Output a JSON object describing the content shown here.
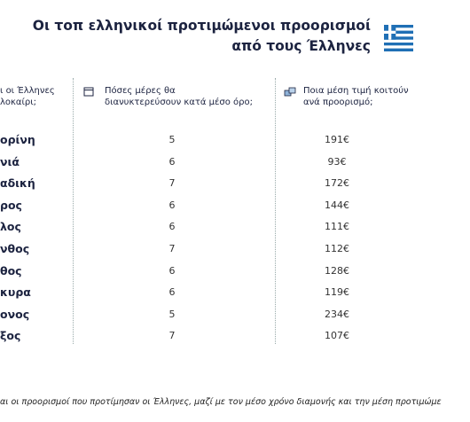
{
  "header": {
    "title_lines": [
      "Οι τοπ ελληνικοί προτιμώμενοι προορισμοί",
      "από τους Έλληνες"
    ]
  },
  "table": {
    "headers": [
      [
        "ι οι Έλληνες",
        "λοκαίρι;"
      ],
      [
        "Πόσες μέρες θα",
        "διανυκτερεύσουν κατά μέσο όρο;"
      ],
      [
        "Ποια μέση τιμή κοιτούν",
        "ανά προορισμό;"
      ]
    ],
    "rows": [
      [
        "ορίνη",
        "5",
        "191€"
      ],
      [
        "νιά",
        "6",
        "93€"
      ],
      [
        "αδική",
        "7",
        "172€"
      ],
      [
        "ρος",
        "6",
        "144€"
      ],
      [
        "λος",
        "6",
        "111€"
      ],
      [
        "νθος",
        "7",
        "112€"
      ],
      [
        "θος",
        "6",
        "128€"
      ],
      [
        "κυρα",
        "6",
        "119€"
      ],
      [
        "ονος",
        "5",
        "234€"
      ],
      [
        "ξος",
        "7",
        "107€"
      ]
    ]
  },
  "caption": "αι οι προορισμοί που προτίμησαν οι Έλληνες, μαζί με τον μέσο χρόνο διαμονής και την μέση προτιμώμε"
}
